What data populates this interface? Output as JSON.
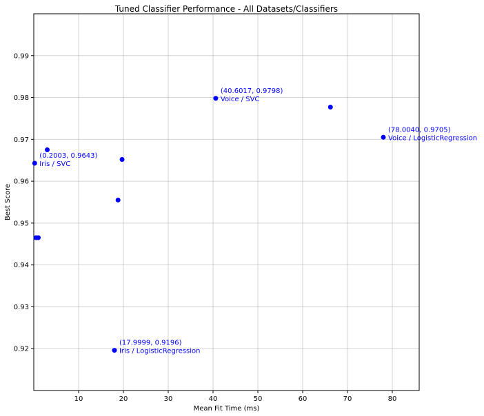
{
  "chart_data": {
    "type": "scatter",
    "title": "Tuned Classifier Performance - All Datasets/Classifiers",
    "xlabel": "Mean Fit Time (ms)",
    "ylabel": "Best Score",
    "xlim": [
      0,
      86
    ],
    "ylim": [
      0.91,
      1.0
    ],
    "xticks": [
      10,
      20,
      30,
      40,
      50,
      60,
      70,
      80
    ],
    "yticks": [
      0.92,
      0.93,
      0.94,
      0.95,
      0.96,
      0.97,
      0.98,
      0.99
    ],
    "grid": true,
    "point_color": "#0000ff",
    "annotation_color": "#0000ff",
    "points": [
      {
        "x": 0.2003,
        "y": 0.9643,
        "label": [
          "(0.2003, 0.9643)",
          "Iris / SVC"
        ]
      },
      {
        "x": 0.5,
        "y": 0.9465
      },
      {
        "x": 1.0,
        "y": 0.9465
      },
      {
        "x": 3.0,
        "y": 0.9675
      },
      {
        "x": 17.9999,
        "y": 0.9196,
        "label": [
          "(17.9999, 0.9196)",
          "Iris / LogisticRegression"
        ]
      },
      {
        "x": 18.8,
        "y": 0.9555
      },
      {
        "x": 19.7,
        "y": 0.9652
      },
      {
        "x": 40.6017,
        "y": 0.9798,
        "label": [
          "(40.6017, 0.9798)",
          "Voice / SVC"
        ]
      },
      {
        "x": 66.2,
        "y": 0.9777
      },
      {
        "x": 78.004,
        "y": 0.9705,
        "label": [
          "(78.0040, 0.9705)",
          "Voice / LogisticRegression"
        ]
      }
    ]
  }
}
